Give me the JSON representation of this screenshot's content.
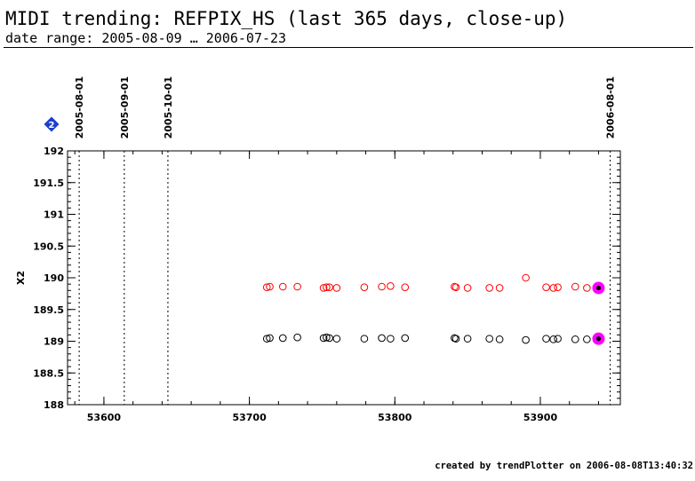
{
  "header": {
    "title": "MIDI trending: REFPIX_HS (last 365 days, close-up)",
    "subtitle": "date range: 2005-08-09 … 2006-07-23"
  },
  "footer": {
    "text": "created by trendPlotter on 2006-08-08T13:40:32"
  },
  "badge": {
    "label": "2",
    "color": "#1a3fd0"
  },
  "chart_data": {
    "type": "scatter",
    "title": "",
    "xlabel": "",
    "ylabel": "X2",
    "xlim": [
      53575,
      53955
    ],
    "ylim": [
      188,
      192
    ],
    "x_ticks": [
      53600,
      53700,
      53800,
      53900
    ],
    "y_ticks": [
      188,
      188.5,
      189,
      189.5,
      190,
      190.5,
      191,
      191.5,
      192
    ],
    "y_tick_labels": [
      "188",
      "188.5",
      "189",
      "189.5",
      "190",
      "190.5",
      "191",
      "191.5",
      "192"
    ],
    "grid": false,
    "date_markers": [
      {
        "label": "2005-08-01",
        "x": 53583
      },
      {
        "label": "2005-09-01",
        "x": 53614
      },
      {
        "label": "2005-10-01",
        "x": 53644
      },
      {
        "label": "2006-08-01",
        "x": 53948
      }
    ],
    "series": [
      {
        "color": "#ff0000",
        "x": [
          53712,
          53714,
          53723,
          53733,
          53751,
          53753,
          53755,
          53760,
          53779,
          53791,
          53797,
          53807,
          53841,
          53842,
          53850,
          53865,
          53872,
          53890,
          53904,
          53909,
          53912,
          53924,
          53932
        ],
        "y": [
          189.85,
          189.86,
          189.86,
          189.86,
          189.84,
          189.85,
          189.85,
          189.84,
          189.85,
          189.86,
          189.87,
          189.85,
          189.86,
          189.85,
          189.84,
          189.84,
          189.84,
          190.0,
          189.85,
          189.84,
          189.85,
          189.86,
          189.84
        ]
      },
      {
        "color": "#000000",
        "x": [
          53712,
          53714,
          53723,
          53733,
          53751,
          53753,
          53755,
          53760,
          53779,
          53791,
          53797,
          53807,
          53841,
          53842,
          53850,
          53865,
          53872,
          53890,
          53904,
          53909,
          53912,
          53924,
          53932
        ],
        "y": [
          189.04,
          189.05,
          189.05,
          189.06,
          189.05,
          189.06,
          189.05,
          189.04,
          189.04,
          189.05,
          189.04,
          189.05,
          189.05,
          189.04,
          189.04,
          189.04,
          189.03,
          189.02,
          189.04,
          189.03,
          189.04,
          189.03,
          189.03
        ]
      }
    ],
    "highlighted_points": [
      {
        "x": 53940,
        "y": 189.84,
        "color": "#ff00ff"
      },
      {
        "x": 53940,
        "y": 189.04,
        "color": "#ff00ff"
      }
    ]
  }
}
